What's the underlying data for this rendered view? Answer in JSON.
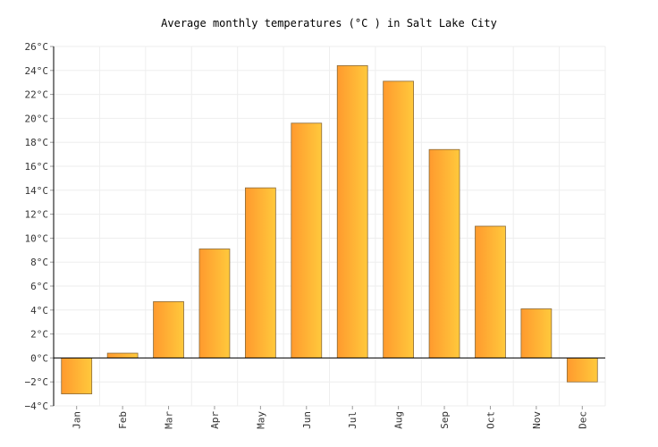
{
  "chart_data": {
    "type": "bar",
    "title": "Average monthly temperatures (°C ) in Salt Lake City",
    "xlabel": "",
    "ylabel": "",
    "categories": [
      "Jan",
      "Feb",
      "Mar",
      "Apr",
      "May",
      "Jun",
      "Jul",
      "Aug",
      "Sep",
      "Oct",
      "Nov",
      "Dec"
    ],
    "values": [
      -3.0,
      0.4,
      4.7,
      9.1,
      14.2,
      19.6,
      24.4,
      23.1,
      17.4,
      11.0,
      4.1,
      -2.0
    ],
    "ylim": [
      -4,
      26
    ],
    "ytick_step": 2,
    "ytick_labels": [
      "−4°C",
      "−2°C",
      "0°C",
      "2°C",
      "4°C",
      "6°C",
      "8°C",
      "10°C",
      "12°C",
      "14°C",
      "16°C",
      "18°C",
      "20°C",
      "22°C",
      "24°C",
      "26°C"
    ],
    "grid": true,
    "legend": "none",
    "colors": {
      "bar_start": "#ff9a2e",
      "bar_end": "#ffc93c",
      "bar_border": "#8a6a3a",
      "grid": "#eeeeee"
    }
  }
}
